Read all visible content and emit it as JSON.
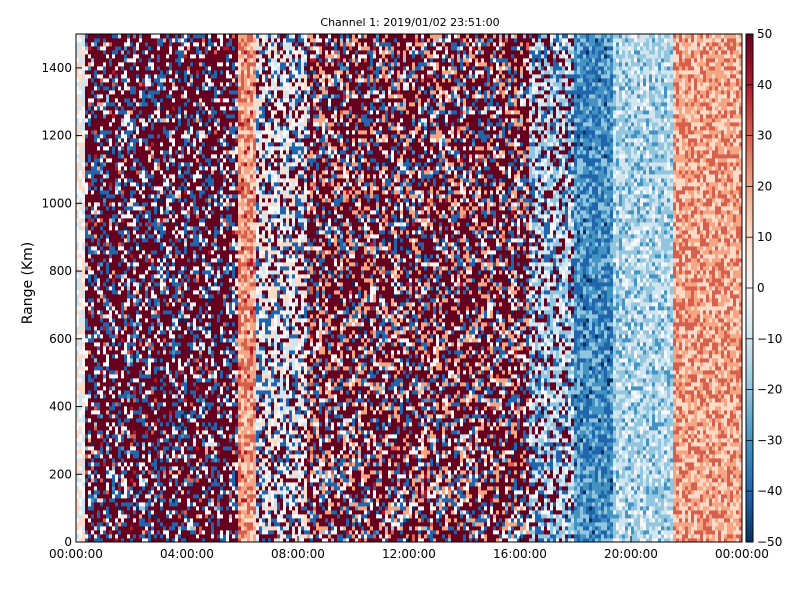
{
  "chart_data": {
    "type": "heatmap",
    "title": "Channel 1: 2019/01/02 23:51:00",
    "xlabel": "",
    "ylabel": "Range (Km)",
    "x_ticks": [
      "00:00:00",
      "04:00:00",
      "08:00:00",
      "12:00:00",
      "16:00:00",
      "20:00:00",
      "00:00:00"
    ],
    "x_range_hours": [
      0,
      24
    ],
    "y_ticks": [
      0,
      200,
      400,
      600,
      800,
      1000,
      1200,
      1400
    ],
    "ylim": [
      0,
      1500
    ],
    "colorbar": {
      "ticks": [
        50,
        40,
        30,
        20,
        10,
        0,
        -10,
        -20,
        -30,
        -40,
        -50
      ],
      "range": [
        -50,
        50
      ],
      "colormap": "RdBu_r",
      "colors": [
        "#053061",
        "#2166ac",
        "#4393c3",
        "#92c5de",
        "#d1e5f0",
        "#f7f7f7",
        "#fddbc7",
        "#f4a582",
        "#d6604d",
        "#b2182b",
        "#67001f"
      ]
    },
    "band_profile": {
      "description_hours_to_level": [
        {
          "from": 0.0,
          "to": 0.3,
          "mean": 0,
          "noise": "low"
        },
        {
          "from": 0.3,
          "to": 5.8,
          "mean": 45,
          "noise": "high"
        },
        {
          "from": 5.8,
          "to": 6.5,
          "mean": 22,
          "noise": "low"
        },
        {
          "from": 6.5,
          "to": 8.3,
          "mean": 0,
          "noise": "medium"
        },
        {
          "from": 8.3,
          "to": 16.3,
          "mean": 40,
          "noise": "high"
        },
        {
          "from": 16.3,
          "to": 18.0,
          "mean": -12,
          "noise": "medium"
        },
        {
          "from": 18.0,
          "to": 19.3,
          "mean": -32,
          "noise": "low"
        },
        {
          "from": 19.3,
          "to": 21.5,
          "mean": -15,
          "noise": "low"
        },
        {
          "from": 21.5,
          "to": 24.0,
          "mean": 20,
          "noise": "low"
        }
      ]
    }
  }
}
